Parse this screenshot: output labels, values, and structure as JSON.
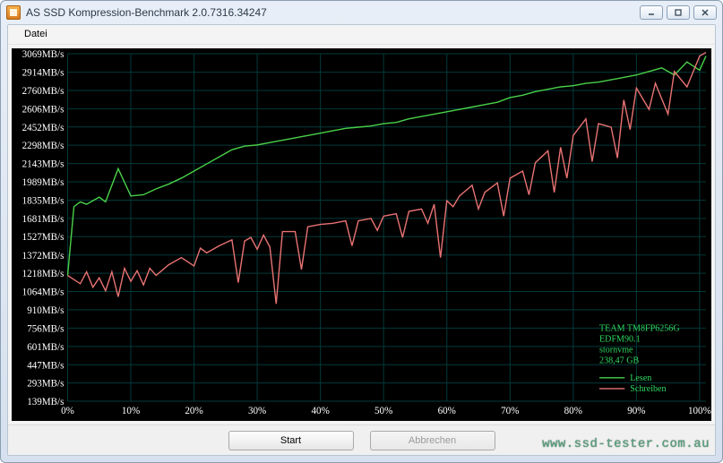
{
  "window": {
    "title": "AS SSD Kompression-Benchmark 2.0.7316.34247",
    "menu": {
      "file": "Datei"
    },
    "buttons": {
      "start": "Start",
      "cancel": "Abbrechen"
    },
    "watermark": "www.ssd-tester.com.au"
  },
  "device": {
    "line1": "TEAM TM8FP6256G",
    "line2": "EDFM90.1",
    "line3": "stornvme",
    "line4": "238,47 GB"
  },
  "legend": {
    "read": "Lesen",
    "write": "Schreiben",
    "read_color": "#49d049",
    "write_color": "#e87272"
  },
  "chart": {
    "background": "#000000",
    "grid_color": "#003a3a",
    "axis_text_color": "#ffffff",
    "device_text_color": "#2fd85f",
    "y_unit": "MB/s",
    "y_ticks": [
      139,
      293,
      447,
      601,
      756,
      910,
      1064,
      1218,
      1372,
      1527,
      1681,
      1835,
      1989,
      2143,
      2298,
      2452,
      2606,
      2760,
      2914,
      3069
    ],
    "x_ticks_pct": [
      0,
      10,
      20,
      30,
      40,
      50,
      60,
      70,
      80,
      90,
      100
    ],
    "x_label_suffix": "%",
    "y_min": 139,
    "y_max": 3069,
    "read_series_color": "#49d049",
    "write_series_color": "#e87272",
    "read_series": [
      [
        0,
        1200
      ],
      [
        1,
        1780
      ],
      [
        2,
        1820
      ],
      [
        3,
        1800
      ],
      [
        5,
        1860
      ],
      [
        6,
        1820
      ],
      [
        8,
        2100
      ],
      [
        10,
        1870
      ],
      [
        12,
        1880
      ],
      [
        14,
        1930
      ],
      [
        16,
        1970
      ],
      [
        18,
        2020
      ],
      [
        20,
        2080
      ],
      [
        22,
        2140
      ],
      [
        24,
        2200
      ],
      [
        26,
        2260
      ],
      [
        28,
        2290
      ],
      [
        30,
        2300
      ],
      [
        32,
        2320
      ],
      [
        34,
        2340
      ],
      [
        36,
        2360
      ],
      [
        38,
        2380
      ],
      [
        40,
        2400
      ],
      [
        42,
        2420
      ],
      [
        44,
        2440
      ],
      [
        46,
        2450
      ],
      [
        48,
        2460
      ],
      [
        50,
        2480
      ],
      [
        52,
        2490
      ],
      [
        54,
        2520
      ],
      [
        56,
        2540
      ],
      [
        58,
        2560
      ],
      [
        60,
        2580
      ],
      [
        62,
        2600
      ],
      [
        64,
        2620
      ],
      [
        66,
        2640
      ],
      [
        68,
        2660
      ],
      [
        70,
        2700
      ],
      [
        72,
        2720
      ],
      [
        74,
        2750
      ],
      [
        76,
        2770
      ],
      [
        78,
        2790
      ],
      [
        80,
        2800
      ],
      [
        82,
        2820
      ],
      [
        84,
        2830
      ],
      [
        86,
        2850
      ],
      [
        88,
        2870
      ],
      [
        90,
        2890
      ],
      [
        92,
        2920
      ],
      [
        94,
        2950
      ],
      [
        96,
        2890
      ],
      [
        98,
        3000
      ],
      [
        100,
        2930
      ],
      [
        101,
        3050
      ]
    ],
    "write_series": [
      [
        0,
        1200
      ],
      [
        2,
        1130
      ],
      [
        3,
        1230
      ],
      [
        4,
        1100
      ],
      [
        5,
        1180
      ],
      [
        6,
        1070
      ],
      [
        7,
        1230
      ],
      [
        8,
        1020
      ],
      [
        9,
        1260
      ],
      [
        10,
        1150
      ],
      [
        11,
        1240
      ],
      [
        12,
        1120
      ],
      [
        13,
        1260
      ],
      [
        14,
        1200
      ],
      [
        16,
        1290
      ],
      [
        18,
        1350
      ],
      [
        20,
        1280
      ],
      [
        21,
        1430
      ],
      [
        22,
        1390
      ],
      [
        24,
        1450
      ],
      [
        26,
        1500
      ],
      [
        27,
        1140
      ],
      [
        28,
        1490
      ],
      [
        29,
        1520
      ],
      [
        30,
        1420
      ],
      [
        31,
        1540
      ],
      [
        32,
        1440
      ],
      [
        33,
        960
      ],
      [
        34,
        1570
      ],
      [
        36,
        1570
      ],
      [
        37,
        1250
      ],
      [
        38,
        1610
      ],
      [
        40,
        1630
      ],
      [
        42,
        1640
      ],
      [
        44,
        1660
      ],
      [
        45,
        1450
      ],
      [
        46,
        1660
      ],
      [
        48,
        1680
      ],
      [
        49,
        1580
      ],
      [
        50,
        1700
      ],
      [
        52,
        1720
      ],
      [
        53,
        1520
      ],
      [
        54,
        1740
      ],
      [
        56,
        1760
      ],
      [
        57,
        1640
      ],
      [
        58,
        1800
      ],
      [
        59,
        1350
      ],
      [
        60,
        1830
      ],
      [
        61,
        1780
      ],
      [
        62,
        1870
      ],
      [
        64,
        1960
      ],
      [
        65,
        1760
      ],
      [
        66,
        1900
      ],
      [
        68,
        1980
      ],
      [
        69,
        1700
      ],
      [
        70,
        2020
      ],
      [
        72,
        2080
      ],
      [
        73,
        1880
      ],
      [
        74,
        2150
      ],
      [
        76,
        2250
      ],
      [
        77,
        1900
      ],
      [
        78,
        2280
      ],
      [
        79,
        2020
      ],
      [
        80,
        2380
      ],
      [
        82,
        2520
      ],
      [
        83,
        2160
      ],
      [
        84,
        2480
      ],
      [
        86,
        2450
      ],
      [
        87,
        2190
      ],
      [
        88,
        2680
      ],
      [
        89,
        2430
      ],
      [
        90,
        2780
      ],
      [
        92,
        2600
      ],
      [
        93,
        2820
      ],
      [
        95,
        2560
      ],
      [
        96,
        2920
      ],
      [
        98,
        2790
      ],
      [
        100,
        3050
      ],
      [
        101,
        3080
      ]
    ]
  }
}
